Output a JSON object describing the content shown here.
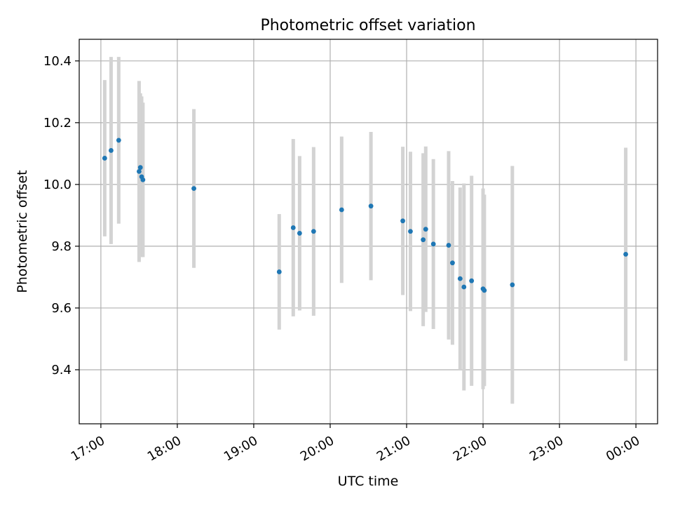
{
  "chart_data": {
    "type": "scatter",
    "title": "Photometric offset variation",
    "xlabel": "UTC time",
    "ylabel": "Photometric offset",
    "x_tick_labels": [
      "17:00",
      "18:00",
      "19:00",
      "20:00",
      "21:00",
      "22:00",
      "23:00",
      "00:00"
    ],
    "x_ticks": [
      "17:00",
      "18:00",
      "19:00",
      "20:00",
      "21:00",
      "22:00",
      "23:00",
      "24:00"
    ],
    "y_tick_labels": [
      "9.4",
      "9.6",
      "9.8",
      "10.0",
      "10.2",
      "10.4"
    ],
    "y_ticks": [
      9.4,
      9.6,
      9.8,
      10.0,
      10.2,
      10.4
    ],
    "xlim": [
      "16:43",
      "24:17"
    ],
    "ylim": [
      9.225,
      10.47
    ],
    "grid": true,
    "colors": {
      "points": "#1f77b4",
      "errorbars": "#d3d3d3",
      "grid": "#b0b0b0"
    },
    "series": [
      {
        "points": [
          {
            "x": "17:03",
            "y": 10.085,
            "err": 0.253
          },
          {
            "x": "17:08",
            "y": 10.11,
            "err": 0.303
          },
          {
            "x": "17:14",
            "y": 10.143,
            "err": 0.27
          },
          {
            "x": "17:30",
            "y": 10.042,
            "err": 0.293
          },
          {
            "x": "17:31",
            "y": 10.055,
            "err": 0.24
          },
          {
            "x": "17:32",
            "y": 10.025,
            "err": 0.26
          },
          {
            "x": "17:33",
            "y": 10.015,
            "err": 0.25
          },
          {
            "x": "18:13",
            "y": 9.987,
            "err": 0.257
          },
          {
            "x": "19:20",
            "y": 9.717,
            "err": 0.187
          },
          {
            "x": "19:31",
            "y": 9.86,
            "err": 0.287
          },
          {
            "x": "19:36",
            "y": 9.842,
            "err": 0.25
          },
          {
            "x": "19:47",
            "y": 9.848,
            "err": 0.273
          },
          {
            "x": "20:09",
            "y": 9.918,
            "err": 0.237
          },
          {
            "x": "20:32",
            "y": 9.93,
            "err": 0.24
          },
          {
            "x": "20:57",
            "y": 9.882,
            "err": 0.24
          },
          {
            "x": "21:03",
            "y": 9.848,
            "err": 0.258
          },
          {
            "x": "21:13",
            "y": 9.821,
            "err": 0.28
          },
          {
            "x": "21:15",
            "y": 9.855,
            "err": 0.268
          },
          {
            "x": "21:21",
            "y": 9.807,
            "err": 0.275
          },
          {
            "x": "21:33",
            "y": 9.803,
            "err": 0.305
          },
          {
            "x": "21:36",
            "y": 9.746,
            "err": 0.265
          },
          {
            "x": "21:42",
            "y": 9.695,
            "err": 0.295
          },
          {
            "x": "21:45",
            "y": 9.668,
            "err": 0.335
          },
          {
            "x": "21:51",
            "y": 9.688,
            "err": 0.34
          },
          {
            "x": "22:00",
            "y": 9.662,
            "err": 0.325
          },
          {
            "x": "22:01",
            "y": 9.657,
            "err": 0.31
          },
          {
            "x": "22:23",
            "y": 9.675,
            "err": 0.385
          },
          {
            "x": "23:52",
            "y": 9.774,
            "err": 0.345
          }
        ]
      }
    ]
  }
}
